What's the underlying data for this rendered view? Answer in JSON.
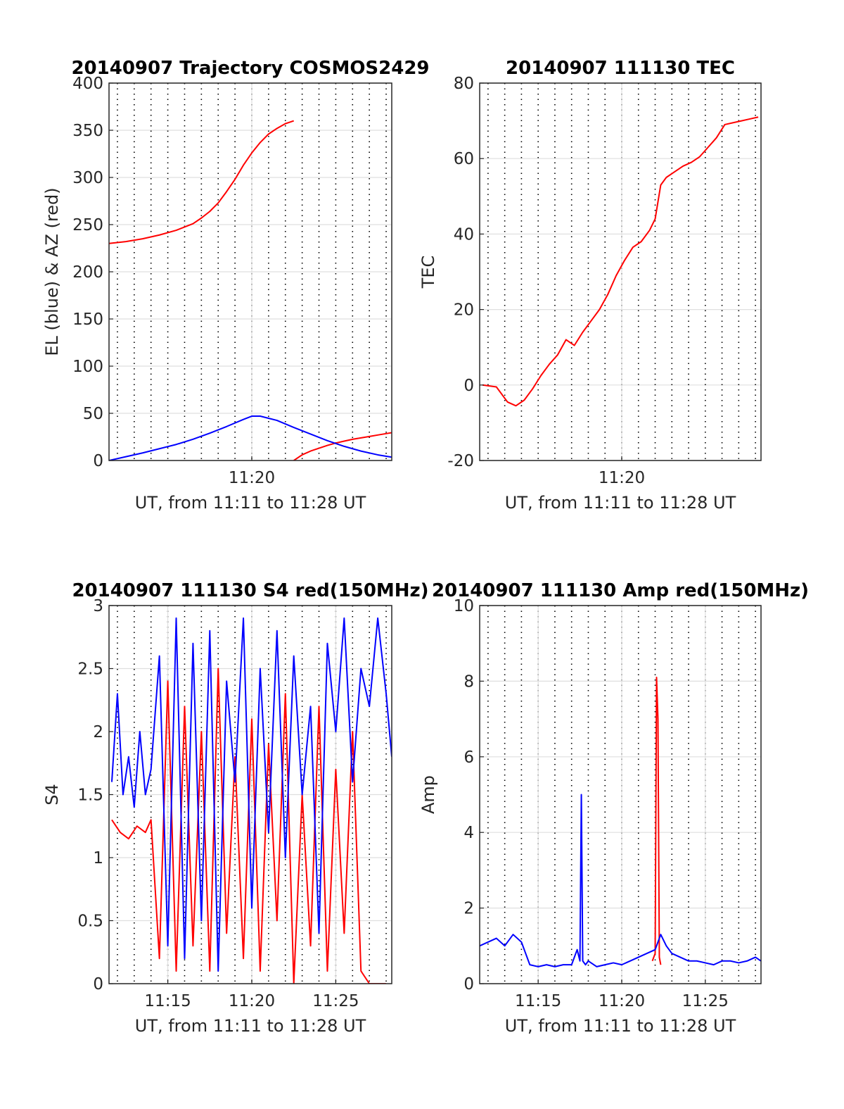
{
  "chart_data": [
    {
      "id": "traj",
      "type": "line",
      "title": "20140907 Trajectory COSMOS2429",
      "xlabel": "UT, from 11:11 to 11:28 UT",
      "ylabel": "EL (blue) & AZ (red)",
      "xlim": [
        "11:11:30",
        "11:28:20"
      ],
      "ylim": [
        0,
        400
      ],
      "yticks": [
        0,
        50,
        100,
        150,
        200,
        250,
        300,
        350,
        400
      ],
      "xticks": [
        "11:20"
      ],
      "grid": true,
      "series": [
        {
          "color": "#ff0000",
          "x": [
            "11:11:30",
            "11:12:30",
            "11:13:30",
            "11:14:30",
            "11:15:30",
            "11:16:30",
            "11:17:00",
            "11:17:30",
            "11:18:00",
            "11:18:30",
            "11:19:00",
            "11:19:30",
            "11:20:00",
            "11:20:30",
            "11:21:00",
            "11:21:30",
            "11:22:00",
            "11:22:20",
            "11:22:30"
          ],
          "values": [
            230,
            232,
            235,
            239,
            244,
            251,
            257,
            264,
            273,
            285,
            298,
            313,
            326,
            337,
            346,
            352,
            357,
            359,
            360
          ]
        },
        {
          "color": "#ff0000",
          "x": [
            "11:22:30",
            "11:23:00",
            "11:23:30",
            "11:24:00",
            "11:24:30",
            "11:25:00",
            "11:25:30",
            "11:26:00",
            "11:26:30",
            "11:27:00",
            "11:27:30",
            "11:28:00",
            "11:28:20"
          ],
          "values": [
            0,
            6,
            10,
            13,
            16,
            18.5,
            20.5,
            22.5,
            24,
            25.5,
            27,
            28.5,
            29.5
          ]
        },
        {
          "color": "#0000ff",
          "x": [
            "11:11:30",
            "11:12:30",
            "11:13:30",
            "11:14:30",
            "11:15:30",
            "11:16:30",
            "11:17:30",
            "11:18:30",
            "11:19:30",
            "11:20:00",
            "11:20:30",
            "11:21:30",
            "11:22:30",
            "11:23:30",
            "11:24:30",
            "11:25:30",
            "11:26:30",
            "11:27:30",
            "11:28:20"
          ],
          "values": [
            0,
            4,
            8,
            12.5,
            17,
            22.5,
            29,
            36,
            43.5,
            47,
            47,
            42.5,
            35,
            28,
            21,
            15,
            10,
            6,
            3.5
          ]
        }
      ]
    },
    {
      "id": "tec",
      "type": "line",
      "title": "20140907 111130 TEC",
      "xlabel": "UT, from 11:11 to 11:28 UT",
      "ylabel": "TEC",
      "xlim": [
        "11:11:30",
        "11:28:20"
      ],
      "ylim": [
        -20,
        80
      ],
      "yticks": [
        -20,
        0,
        20,
        40,
        60,
        80
      ],
      "xticks": [
        "11:20"
      ],
      "grid": true,
      "series": [
        {
          "color": "#ff0000",
          "x": [
            "11:11:40",
            "11:12:30",
            "11:13:10",
            "11:13:40",
            "11:14:10",
            "11:14:40",
            "11:15:10",
            "11:15:40",
            "11:16:10",
            "11:16:40",
            "11:17:10",
            "11:17:40",
            "11:18:10",
            "11:18:40",
            "11:19:10",
            "11:19:40",
            "11:20:10",
            "11:20:40",
            "11:21:10",
            "11:21:40",
            "11:22:00",
            "11:22:20",
            "11:22:40",
            "11:23:10",
            "11:23:40",
            "11:24:10",
            "11:24:40",
            "11:25:10",
            "11:25:40",
            "11:26:10",
            "11:26:40",
            "11:27:10",
            "11:27:40",
            "11:28:10"
          ],
          "values": [
            0,
            -0.5,
            -4.5,
            -5.5,
            -4,
            -1,
            2.5,
            5.5,
            8,
            12,
            10.5,
            14,
            17,
            20,
            24,
            29,
            33,
            36.5,
            38,
            41,
            44,
            53,
            55,
            56.5,
            58,
            59,
            60.5,
            63,
            65.5,
            69,
            69.5,
            70,
            70.5,
            71
          ]
        }
      ]
    },
    {
      "id": "s4",
      "type": "line",
      "title": "20140907 111130 S4 red(150MHz)",
      "xlabel": "UT, from 11:11 to 11:28 UT",
      "ylabel": "S4",
      "xlim": [
        "11:11:30",
        "11:28:20"
      ],
      "ylim": [
        0,
        3
      ],
      "yticks": [
        0,
        0.5,
        1,
        1.5,
        2,
        2.5,
        3
      ],
      "xticks": [
        "11:15",
        "11:20",
        "11:25"
      ],
      "grid": true,
      "series": [
        {
          "color": "#ff0000",
          "x": [
            "11:11:40",
            "11:12:10",
            "11:12:40",
            "11:13:10",
            "11:13:40",
            "11:14:00",
            "11:14:30",
            "11:15:00",
            "11:15:30",
            "11:16:00",
            "11:16:30",
            "11:17:00",
            "11:17:30",
            "11:18:00",
            "11:18:30",
            "11:19:00",
            "11:19:30",
            "11:20:00",
            "11:20:30",
            "11:21:00",
            "11:21:30",
            "11:22:00",
            "11:22:30",
            "11:23:00",
            "11:23:30",
            "11:24:00",
            "11:24:30",
            "11:25:00",
            "11:25:30",
            "11:26:00",
            "11:26:30",
            "11:27:00",
            "11:28:00"
          ],
          "values": [
            1.3,
            1.2,
            1.15,
            1.25,
            1.2,
            1.3,
            0.2,
            2.4,
            0.1,
            2.2,
            0.3,
            2.0,
            0.1,
            2.5,
            0.4,
            1.8,
            0.2,
            2.1,
            0.1,
            1.9,
            0.5,
            2.3,
            0.0,
            1.5,
            0.3,
            2.2,
            0.1,
            1.7,
            0.4,
            2.0,
            0.1,
            0.0,
            0.0
          ]
        },
        {
          "color": "#0000ff",
          "x": [
            "11:11:40",
            "11:12:00",
            "11:12:20",
            "11:12:40",
            "11:13:00",
            "11:13:20",
            "11:13:40",
            "11:14:00",
            "11:14:30",
            "11:15:00",
            "11:15:30",
            "11:16:00",
            "11:16:30",
            "11:17:00",
            "11:17:30",
            "11:18:00",
            "11:18:30",
            "11:19:00",
            "11:19:30",
            "11:20:00",
            "11:20:30",
            "11:21:00",
            "11:21:30",
            "11:22:00",
            "11:22:30",
            "11:23:00",
            "11:23:30",
            "11:24:00",
            "11:24:30",
            "11:25:00",
            "11:25:30",
            "11:26:00",
            "11:26:30",
            "11:27:00",
            "11:27:30",
            "11:28:00",
            "11:28:20"
          ],
          "values": [
            1.6,
            2.3,
            1.5,
            1.8,
            1.4,
            2.0,
            1.5,
            1.7,
            2.6,
            0.3,
            2.9,
            0.2,
            2.7,
            0.5,
            2.8,
            0.1,
            2.4,
            1.6,
            2.9,
            0.6,
            2.5,
            1.2,
            2.8,
            1.0,
            2.6,
            1.5,
            2.2,
            0.4,
            2.7,
            2.0,
            2.9,
            1.6,
            2.5,
            2.2,
            2.9,
            2.3,
            1.8
          ]
        }
      ]
    },
    {
      "id": "amp",
      "type": "line",
      "title": "20140907 111130 Amp red(150MHz)",
      "xlabel": "UT, from 11:11 to 11:28 UT",
      "ylabel": "Amp",
      "xlim": [
        "11:11:30",
        "11:28:20"
      ],
      "ylim": [
        0,
        10
      ],
      "yticks": [
        0,
        2,
        4,
        6,
        8,
        10
      ],
      "xticks": [
        "11:15",
        "11:20",
        "11:25"
      ],
      "grid": true,
      "series": [
        {
          "color": "#ff0000",
          "x": [
            "11:21:50",
            "11:22:00",
            "11:22:05",
            "11:22:10",
            "11:22:15",
            "11:22:20"
          ],
          "values": [
            0.6,
            0.8,
            8.1,
            7.0,
            0.7,
            0.5
          ]
        },
        {
          "color": "#0000ff",
          "x": [
            "11:11:30",
            "11:12:00",
            "11:12:30",
            "11:13:00",
            "11:13:30",
            "11:14:00",
            "11:14:30",
            "11:15:00",
            "11:15:30",
            "11:16:00",
            "11:16:30",
            "11:17:00",
            "11:17:20",
            "11:17:30",
            "11:17:35",
            "11:17:40",
            "11:17:50",
            "11:18:00",
            "11:18:30",
            "11:19:00",
            "11:19:30",
            "11:20:00",
            "11:20:30",
            "11:21:00",
            "11:21:30",
            "11:22:00",
            "11:22:20",
            "11:22:40",
            "11:23:00",
            "11:23:30",
            "11:24:00",
            "11:24:30",
            "11:25:00",
            "11:25:30",
            "11:26:00",
            "11:26:30",
            "11:27:00",
            "11:27:30",
            "11:28:00",
            "11:28:20"
          ],
          "values": [
            1.0,
            1.1,
            1.2,
            1.0,
            1.3,
            1.1,
            0.5,
            0.45,
            0.5,
            0.45,
            0.5,
            0.5,
            0.9,
            0.6,
            5.0,
            0.6,
            0.5,
            0.6,
            0.45,
            0.5,
            0.55,
            0.5,
            0.6,
            0.7,
            0.8,
            0.9,
            1.3,
            1.0,
            0.8,
            0.7,
            0.6,
            0.6,
            0.55,
            0.5,
            0.6,
            0.6,
            0.55,
            0.6,
            0.7,
            0.6
          ]
        }
      ]
    }
  ]
}
